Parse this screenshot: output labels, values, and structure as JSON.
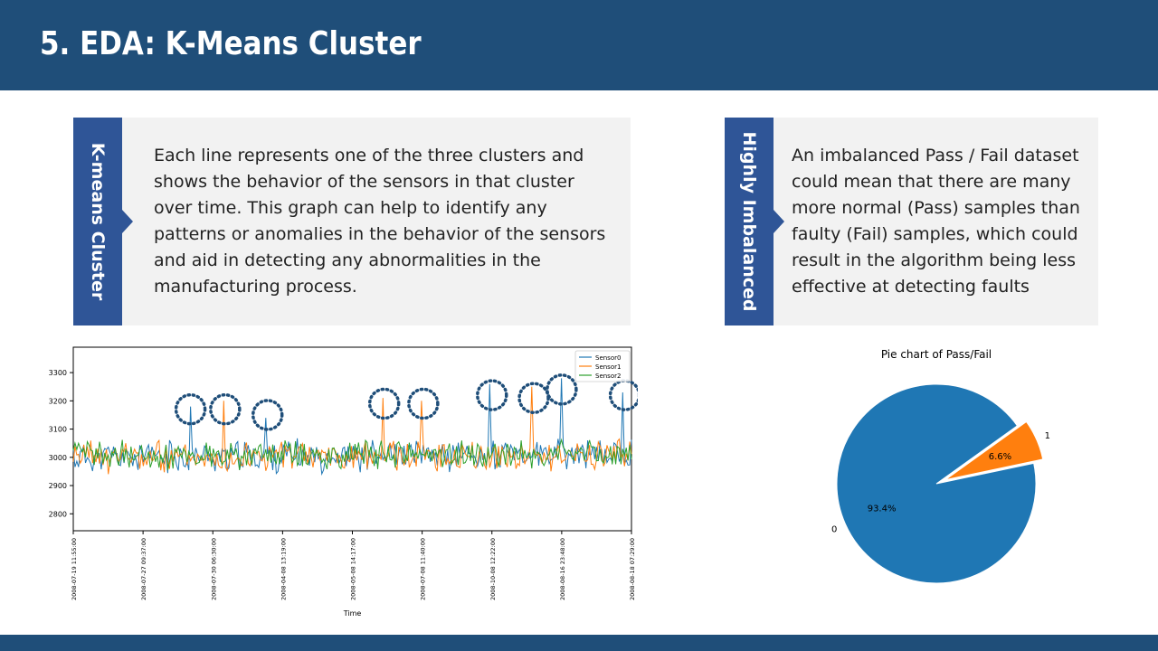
{
  "slide": {
    "title": "5. EDA: K-Means Cluster",
    "left_panel": {
      "tab_label": "K-means Cluster",
      "text": "Each line represents one of the three clusters and shows the behavior of the sensors in that cluster over time. This graph can help to identify any patterns or anomalies in the behavior of the sensors and aid in detecting any abnormalities in the manufacturing process."
    },
    "right_panel": {
      "tab_label": "Highly Imbalanced",
      "text": "An imbalanced Pass / Fail dataset could mean that there are many more normal (Pass) samples than faulty (Fail) samples, which could result in the algorithm being less effective at detecting faults"
    }
  },
  "colors": {
    "header": "#1f4e79",
    "tab": "#2f5597",
    "panel": "#f2f2f2",
    "circle": "#1f4e79"
  },
  "chart_data": [
    {
      "type": "line",
      "title": "",
      "xlabel": "Time",
      "ylabel": "",
      "yticks": [
        2800,
        2900,
        3000,
        3100,
        3200,
        3300
      ],
      "ylim": [
        2740,
        3390
      ],
      "xticks": [
        "2008-07-19 11:55:00",
        "2008-07-27 09:37:00",
        "2008-07-30 06:30:00",
        "2008-04-08 13:19:00",
        "2008-05-08 14:17:00",
        "2008-07-08 11:40:00",
        "2008-10-08 12:22:00",
        "2008-08-16 23:48:00",
        "2008-08-18 07:29:00"
      ],
      "legend_position": "top-right",
      "series": [
        {
          "name": "Sensor0",
          "color": "#1f77b4",
          "base": 3000,
          "amp": 45,
          "seed": 11
        },
        {
          "name": "Sensor1",
          "color": "#ff7f0e",
          "base": 3000,
          "amp": 45,
          "seed": 23
        },
        {
          "name": "Sensor2",
          "color": "#2ca02c",
          "base": 3005,
          "amp": 40,
          "seed": 37
        }
      ],
      "points": 320,
      "spikes": [
        {
          "series": 0,
          "x": 0.21,
          "y": 3180
        },
        {
          "series": 1,
          "x": 0.27,
          "y": 3200
        },
        {
          "series": 0,
          "x": 0.345,
          "y": 3140
        },
        {
          "series": 1,
          "x": 0.555,
          "y": 3210
        },
        {
          "series": 1,
          "x": 0.625,
          "y": 3200
        },
        {
          "series": 0,
          "x": 0.745,
          "y": 3260
        },
        {
          "series": 1,
          "x": 0.82,
          "y": 3250
        },
        {
          "series": 0,
          "x": 0.875,
          "y": 3280
        },
        {
          "series": 0,
          "x": 0.985,
          "y": 3230
        }
      ],
      "anomaly_circles_x": [
        0.21,
        0.272,
        0.348,
        0.557,
        0.627,
        0.75,
        0.825,
        0.875,
        0.988
      ],
      "anomaly_circles_y": [
        3170,
        3170,
        3150,
        3190,
        3190,
        3220,
        3210,
        3240,
        3220
      ]
    },
    {
      "type": "pie",
      "title": "Pie chart of Pass/Fail",
      "labels": [
        "0",
        "1"
      ],
      "values": [
        93.4,
        6.6
      ],
      "value_labels": [
        "93.4%",
        "6.6%"
      ],
      "colors": [
        "#1f77b4",
        "#ff7f0e"
      ],
      "explode": [
        0,
        0.1
      ]
    }
  ]
}
